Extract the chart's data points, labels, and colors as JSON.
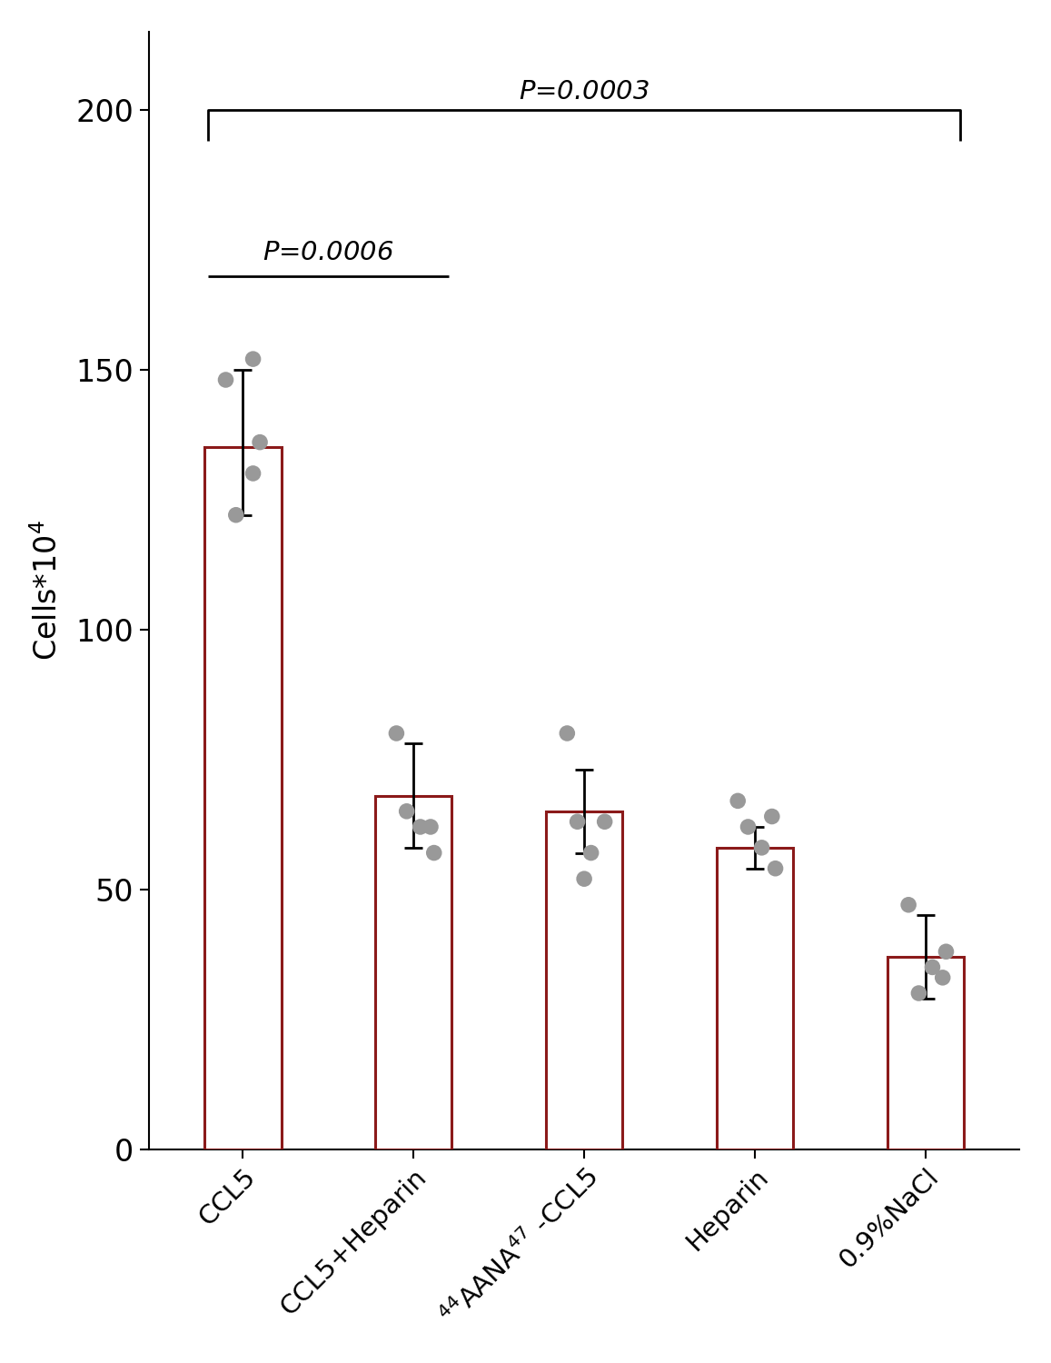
{
  "categories": [
    "CCL5",
    "CCL5+Heparin",
    "$^{44}$AANA$^{47}$ -CCL5",
    "Heparin",
    "0.9%NaCl"
  ],
  "means": [
    135,
    68,
    65,
    58,
    37
  ],
  "errors_upper": [
    15,
    10,
    8,
    4,
    8
  ],
  "errors_lower": [
    13,
    10,
    8,
    4,
    8
  ],
  "bar_color": "#8B1A1A",
  "bar_facecolor": "white",
  "dot_color": "#999999",
  "dot_points": [
    [
      148,
      130,
      122,
      136,
      152
    ],
    [
      80,
      65,
      62,
      57,
      62
    ],
    [
      80,
      63,
      57,
      63,
      52
    ],
    [
      67,
      62,
      58,
      54,
      64
    ],
    [
      47,
      30,
      35,
      38,
      33
    ]
  ],
  "dot_jitter": [
    [
      -0.1,
      0.06,
      -0.04,
      0.1,
      0.06
    ],
    [
      -0.1,
      -0.04,
      0.04,
      0.12,
      0.1
    ],
    [
      -0.1,
      -0.04,
      0.04,
      0.12,
      0.0
    ],
    [
      -0.1,
      -0.04,
      0.04,
      0.12,
      0.1
    ],
    [
      -0.1,
      -0.04,
      0.04,
      0.12,
      0.1
    ]
  ],
  "ylabel": "Cells*10^4",
  "ylim": [
    0,
    215
  ],
  "yticks": [
    0,
    50,
    100,
    150,
    200
  ],
  "bar_linewidth": 2.2,
  "background_color": "white",
  "bar_width": 0.45
}
